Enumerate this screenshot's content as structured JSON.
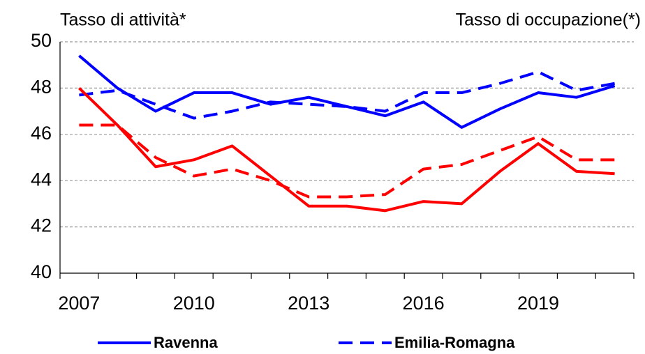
{
  "chart_data": {
    "type": "line",
    "annotations": [
      {
        "text": "Tasso di attività*",
        "color": "#0000ff"
      },
      {
        "text": "Tasso di occupazione(*)",
        "color": "#ff0000"
      }
    ],
    "categories": [
      "2007",
      null,
      null,
      "2010",
      null,
      null,
      "2013",
      null,
      null,
      "2016",
      null,
      null,
      "2019",
      null,
      null
    ],
    "series": [
      {
        "name": "Ravenna",
        "color": "#0000ff",
        "dash": "solid",
        "values": [
          49.4,
          48.0,
          47.0,
          47.8,
          47.8,
          47.3,
          47.6,
          47.2,
          46.8,
          47.4,
          46.3,
          47.1,
          47.8,
          47.6,
          48.1
        ]
      },
      {
        "name": "Emilia-Romagna",
        "color": "#0000ff",
        "dash": "dashed",
        "values": [
          47.7,
          47.9,
          47.3,
          46.7,
          47.0,
          47.4,
          47.3,
          47.2,
          47.0,
          47.8,
          47.8,
          48.2,
          48.7,
          47.9,
          48.2
        ]
      },
      {
        "name": "Ravenna",
        "color": "#ff0000",
        "dash": "solid",
        "values": [
          48.0,
          46.4,
          44.6,
          44.9,
          45.5,
          44.2,
          42.9,
          42.9,
          42.7,
          43.1,
          43.0,
          44.4,
          45.6,
          44.4,
          44.3
        ]
      },
      {
        "name": "Emilia-Romagna",
        "color": "#ff0000",
        "dash": "dashed",
        "values": [
          46.4,
          46.4,
          45.0,
          44.2,
          44.5,
          44.0,
          43.3,
          43.3,
          43.4,
          44.5,
          44.7,
          45.3,
          45.9,
          44.9,
          44.9
        ]
      }
    ],
    "ylim": [
      40,
      50
    ],
    "yticks": [
      40,
      42,
      44,
      46,
      48,
      50
    ],
    "grid": true,
    "legend": "bottom"
  }
}
